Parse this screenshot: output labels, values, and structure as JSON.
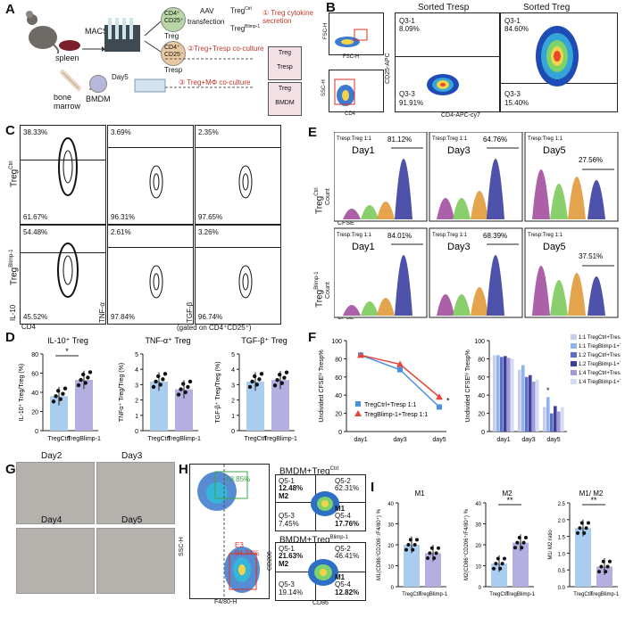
{
  "panels": {
    "A": "A",
    "B": "B",
    "C": "C",
    "D": "D",
    "E": "E",
    "F": "F",
    "G": "G",
    "H": "H",
    "I": "I"
  },
  "A": {
    "macs": "MACS",
    "spleen": "spleen",
    "bone_marrow_1": "bone",
    "bone_marrow_2": "marrow",
    "bmdm": "BMDM",
    "day5": "Day5",
    "treg_cell": "CD4⁺ CD25⁺",
    "treg_cell_name": "Treg",
    "tresp_cell": "CD4⁺ CD25⁻",
    "tresp_cell_name": "Tresp",
    "aav": "AAV",
    "transfection": "transfection",
    "treg_ctrl": "Treg",
    "treg_ctrl_sup": "Ctrl",
    "treg_blimp": "Treg",
    "treg_blimp_sup": "Blimp-1",
    "step1": "① Treg cytokine secretion",
    "step2": "②Treg+Tresp co-culture",
    "step3": "③ Treg+MΦ co-culture",
    "tube2_top": "Treg",
    "tube2_bot": "Tresp",
    "tube3_top": "Treg",
    "tube3_bot": "BMDM"
  },
  "B": {
    "title_tresp": "Sorted Tresp",
    "title_treg": "Sorted Treg",
    "fsc_h": "FSC-H",
    "ssc_h": "SSC-H",
    "fsc_a": "FSC-H",
    "cd4": "CD4",
    "cd25_apc": "CD25-APC",
    "cd4_apc": "CD4-APC-cy7",
    "tresp_q31_label": "Q3-1",
    "tresp_q31_val": "8.09%",
    "tresp_q33_label": "Q3-3",
    "tresp_q33_val": "91.91%",
    "treg_q31_label": "Q3-1",
    "treg_q31_val": "84.60%",
    "treg_q33_label": "Q3-3",
    "treg_q33_val": "15.40%"
  },
  "C": {
    "row1": "Treg",
    "row1_sup": "Ctrl",
    "row2": "Treg",
    "row2_sup": "Blimp-1",
    "ylab_il10": "IL-10",
    "ylab_tnf": "TNF-α",
    "ylab_tgf": "TGF-β",
    "xlab_cd4": "CD4",
    "gated": "(gated on CD4⁺CD25⁺)",
    "r1c1_top": "38.33%",
    "r1c1_bot": "61.67%",
    "r1c2_top": "3.69%",
    "r1c2_bot": "96.31%",
    "r1c3_top": "2.35%",
    "r1c3_bot": "97.65%",
    "r2c1_top": "54.48%",
    "r2c1_bot": "45.52%",
    "r2c2_top": "2.61%",
    "r2c2_bot": "97.84%",
    "r2c3_top": "3.26%",
    "r2c3_bot": "96.74%"
  },
  "D": {
    "titles": [
      "IL-10⁺ Treg",
      "TNF-α⁺ Treg",
      "TGF-β⁺ Treg"
    ],
    "ylabels": [
      "IL-10⁺ Treg/Treg (%)",
      "TNFα⁺ Treg/Treg (%)",
      "TGF-β⁺ Treg/Treg (%)"
    ],
    "xcat": [
      "Treg",
      "Treg"
    ],
    "xsup": [
      "Ctrl",
      "Blimp-1"
    ],
    "star": "*",
    "ticks1": [
      "0",
      "20",
      "40",
      "60",
      "80"
    ],
    "ticks2": [
      "0",
      "1",
      "2",
      "3",
      "4",
      "5"
    ],
    "ticks3": [
      "0",
      "1",
      "2",
      "3",
      "4",
      "5"
    ]
  },
  "E": {
    "row1": "Treg",
    "row1_sup": "Ctrl",
    "row2": "Treg",
    "row2_sup": "Blimp-1",
    "count": "Count",
    "cfse": "CFSE",
    "ratio": "Tresp:Treg 1:1",
    "r1": [
      {
        "day": "Day1",
        "pct": "81.12%"
      },
      {
        "day": "Day3",
        "pct": "64.76%"
      },
      {
        "day": "Day5",
        "pct": "27.56%"
      }
    ],
    "r2": [
      {
        "day": "Day1",
        "pct": "84.01%"
      },
      {
        "day": "Day3",
        "pct": "68.39%"
      },
      {
        "day": "Day5",
        "pct": "37.51%"
      }
    ]
  },
  "F": {
    "ylabel_left": "Undivided CFSEʰⁱ Tresp%",
    "ylabel_right": "Undivided CFSEʰⁱ Tresp%",
    "legend_ctrl": "Treg",
    "legend_ctrl_sup": "Ctrl",
    "legend_ctrl_tail": "+Tresp  1:1",
    "legend_blimp": "Treg",
    "legend_blimp_sup": "Blimp-1",
    "legend_blimp_tail": "+Tresp  1:1",
    "star": "*",
    "star2": "*",
    "xcats": [
      "day1",
      "day3",
      "day5"
    ],
    "yticks": [
      "0",
      "20",
      "40",
      "60",
      "80",
      "100"
    ],
    "bar_legend": [
      "1:1 Treg",
      "1:1 Treg",
      "1:2 Treg",
      "1:2 Treg",
      "1:4 Treg",
      "1:4 Treg"
    ],
    "bar_legend_sup": [
      "Ctrl",
      "Blimp-1",
      "Ctrl",
      "Blimp-1",
      "Ctrl",
      "Blimp-1"
    ],
    "bar_legend_tail": "+Tresp",
    "bar_colors": [
      "#c8cdf0",
      "#8fb3ec",
      "#5b6fc7",
      "#3d3f98",
      "#a09ad6",
      "#d4dbf5"
    ]
  },
  "G": {
    "day2": "Day2",
    "day3": "Day3",
    "day4": "Day4",
    "day5": "Day5"
  },
  "H": {
    "gate_pct": "18.85%",
    "e3_label": "E3",
    "e3_pct": "94.74%",
    "ssc": "SSC-H",
    "f480": "F4/80-H",
    "title_ctrl": "BMDM+Treg",
    "title_ctrl_sup": "Ctrl",
    "title_blimp": "BMDM+Treg",
    "title_blimp_sup": "Blimp-1",
    "cd206": "CD206",
    "cd86": "CD86",
    "ctrl": {
      "q51": "Q5-1",
      "q51v": "12.48%",
      "m2": "M2",
      "q52": "Q5-2",
      "q52v": "62.31%",
      "m1": "M1",
      "q54": "Q5-4",
      "q54v": "17.76%",
      "q53": "Q5-3",
      "q53v": "7.45%"
    },
    "blimp": {
      "q51": "Q5-1",
      "q51v": "21.63%",
      "m2": "M2",
      "q52": "Q5-2",
      "q52v": "46.41%",
      "m1": "M1",
      "q54": "Q5-4",
      "q54v": "12.82%",
      "q53": "Q5-3",
      "q53v": "19.14%"
    }
  },
  "I": {
    "titles": [
      "M1",
      "M2",
      "M1/ M2"
    ],
    "ylabels": [
      "M1(CD86⁺CD206⁻/F4/80⁺) %",
      "M2(CD86⁺CD206⁺/F4/80⁺) %",
      "M1/ M2 ratio"
    ],
    "stars": [
      "",
      "**",
      "**"
    ],
    "ticks1": [
      "0",
      "10",
      "20",
      "30",
      "40"
    ],
    "ticks2": [
      "0",
      "10",
      "20",
      "30",
      "40"
    ],
    "ticks3": [
      "0.0",
      "0.5",
      "1.0",
      "1.5",
      "2.0",
      "2.5"
    ],
    "xcat": [
      "Treg",
      "Treg"
    ],
    "xsup": [
      "Ctrl",
      "Blimp-1"
    ]
  },
  "chart_data": [
    {
      "type": "bar",
      "title": "IL-10⁺ Treg",
      "categories": [
        "TregCtrl",
        "TregBlimp-1"
      ],
      "values": [
        36,
        53
      ],
      "ylim": [
        0,
        80
      ],
      "ylabel": "IL-10⁺ Treg/Treg (%)"
    },
    {
      "type": "bar",
      "title": "TNF-α⁺ Treg",
      "categories": [
        "TregCtrl",
        "TregBlimp-1"
      ],
      "values": [
        3.2,
        2.7
      ],
      "ylim": [
        0,
        5
      ],
      "ylabel": "TNFα⁺ Treg/Treg (%)"
    },
    {
      "type": "bar",
      "title": "TGF-β⁺ Treg",
      "categories": [
        "TregCtrl",
        "TregBlimp-1"
      ],
      "values": [
        3.2,
        3.3
      ],
      "ylim": [
        0,
        5
      ],
      "ylabel": "TGF-β⁺ Treg/Treg (%)"
    },
    {
      "type": "line",
      "x": [
        "day1",
        "day3",
        "day5"
      ],
      "ylim": [
        0,
        100
      ],
      "ylabel": "Undivided CFSEʰⁱ Tresp%",
      "series": [
        {
          "name": "TregCtrl+Tresp 1:1",
          "values": [
            84,
            68,
            27
          ]
        },
        {
          "name": "TregBlimp-1+Tresp 1:1",
          "values": [
            84,
            74,
            38
          ]
        }
      ]
    },
    {
      "type": "bar",
      "categories": [
        "day1",
        "day3",
        "day5"
      ],
      "ylim": [
        0,
        100
      ],
      "ylabel": "Undivided CFSEʰⁱ Tresp%",
      "series": [
        {
          "name": "1:1 TregCtrl+Tresp",
          "values": [
            84,
            68,
            27
          ]
        },
        {
          "name": "1:1 TregBlimp-1+Tresp",
          "values": [
            84,
            73,
            38
          ]
        },
        {
          "name": "1:2 TregCtrl+Tresp",
          "values": [
            82,
            60,
            20
          ]
        },
        {
          "name": "1:2 TregBlimp-1+Tresp",
          "values": [
            83,
            62,
            28
          ]
        },
        {
          "name": "1:4 TregCtrl+Tresp",
          "values": [
            81,
            55,
            22
          ]
        },
        {
          "name": "1:4 TregBlimp-1+Tresp",
          "values": [
            80,
            57,
            27
          ]
        }
      ]
    },
    {
      "type": "bar",
      "title": "M1",
      "categories": [
        "TregCtrl",
        "TregBlimp-1"
      ],
      "values": [
        20,
        16
      ],
      "ylim": [
        0,
        40
      ]
    },
    {
      "type": "bar",
      "title": "M2",
      "categories": [
        "TregCtrl",
        "TregBlimp-1"
      ],
      "values": [
        11,
        21
      ],
      "ylim": [
        0,
        40
      ]
    },
    {
      "type": "bar",
      "title": "M1/ M2",
      "categories": [
        "TregCtrl",
        "TregBlimp-1"
      ],
      "values": [
        1.75,
        0.6
      ],
      "ylim": [
        0,
        2.5
      ]
    }
  ]
}
